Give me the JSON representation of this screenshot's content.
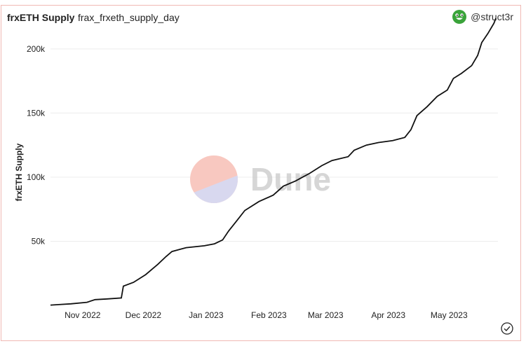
{
  "header": {
    "title": "frxETH Supply",
    "subtitle": "frax_frxeth_supply_day",
    "user": "@struct3r",
    "avatar_icon": "smiley-avatar-icon",
    "avatar_color": "#3aa33a"
  },
  "watermark": {
    "text": "Dune",
    "logo_top_color": "#f8c8c0",
    "logo_bottom_color": "#d8d8ef"
  },
  "footer": {
    "icon": "check-circle-icon"
  },
  "chart_data": {
    "type": "line",
    "title": "",
    "xlabel": "",
    "ylabel": "frxETH Supply",
    "x_ticks": [
      "Nov 2022",
      "Dec 2022",
      "Jan 2023",
      "Feb 2023",
      "Mar 2023",
      "Apr 2023",
      "May 2023"
    ],
    "y_ticks": [
      {
        "value": 50000,
        "label": "50k"
      },
      {
        "value": 100000,
        "label": "100k"
      },
      {
        "value": 150000,
        "label": "150k"
      },
      {
        "value": 200000,
        "label": "200k"
      }
    ],
    "ylim": [
      0,
      230000
    ],
    "xlim": [
      "2022-10-21",
      "2023-05-30"
    ],
    "grid": true,
    "line_color": "#111111",
    "series": [
      {
        "name": "",
        "points": [
          [
            "2022-10-21",
            200
          ],
          [
            "2022-10-25",
            600
          ],
          [
            "2022-10-31",
            1200
          ],
          [
            "2022-11-08",
            2400
          ],
          [
            "2022-11-12",
            4500
          ],
          [
            "2022-11-18",
            5000
          ],
          [
            "2022-11-25",
            5800
          ],
          [
            "2022-11-26",
            15000
          ],
          [
            "2022-12-01",
            18000
          ],
          [
            "2022-12-07",
            24000
          ],
          [
            "2022-12-13",
            32000
          ],
          [
            "2022-12-17",
            38000
          ],
          [
            "2022-12-20",
            42000
          ],
          [
            "2022-12-27",
            45000
          ],
          [
            "2023-01-05",
            46500
          ],
          [
            "2023-01-10",
            48000
          ],
          [
            "2023-01-14",
            51000
          ],
          [
            "2023-01-17",
            58000
          ],
          [
            "2023-01-21",
            66000
          ],
          [
            "2023-01-25",
            74000
          ],
          [
            "2023-02-01",
            81000
          ],
          [
            "2023-02-08",
            86000
          ],
          [
            "2023-02-13",
            93000
          ],
          [
            "2023-02-19",
            97000
          ],
          [
            "2023-02-26",
            103000
          ],
          [
            "2023-03-04",
            109000
          ],
          [
            "2023-03-09",
            113000
          ],
          [
            "2023-03-17",
            116000
          ],
          [
            "2023-03-20",
            121000
          ],
          [
            "2023-03-26",
            125000
          ],
          [
            "2023-04-01",
            127000
          ],
          [
            "2023-04-08",
            128500
          ],
          [
            "2023-04-14",
            131000
          ],
          [
            "2023-04-17",
            137000
          ],
          [
            "2023-04-20",
            148000
          ],
          [
            "2023-04-25",
            155000
          ],
          [
            "2023-04-30",
            163000
          ],
          [
            "2023-05-05",
            168000
          ],
          [
            "2023-05-08",
            177000
          ],
          [
            "2023-05-12",
            181000
          ],
          [
            "2023-05-17",
            187000
          ],
          [
            "2023-05-20",
            195000
          ],
          [
            "2023-05-22",
            205000
          ],
          [
            "2023-05-25",
            212000
          ],
          [
            "2023-05-28",
            220000
          ],
          [
            "2023-05-29",
            224000
          ]
        ]
      }
    ]
  }
}
